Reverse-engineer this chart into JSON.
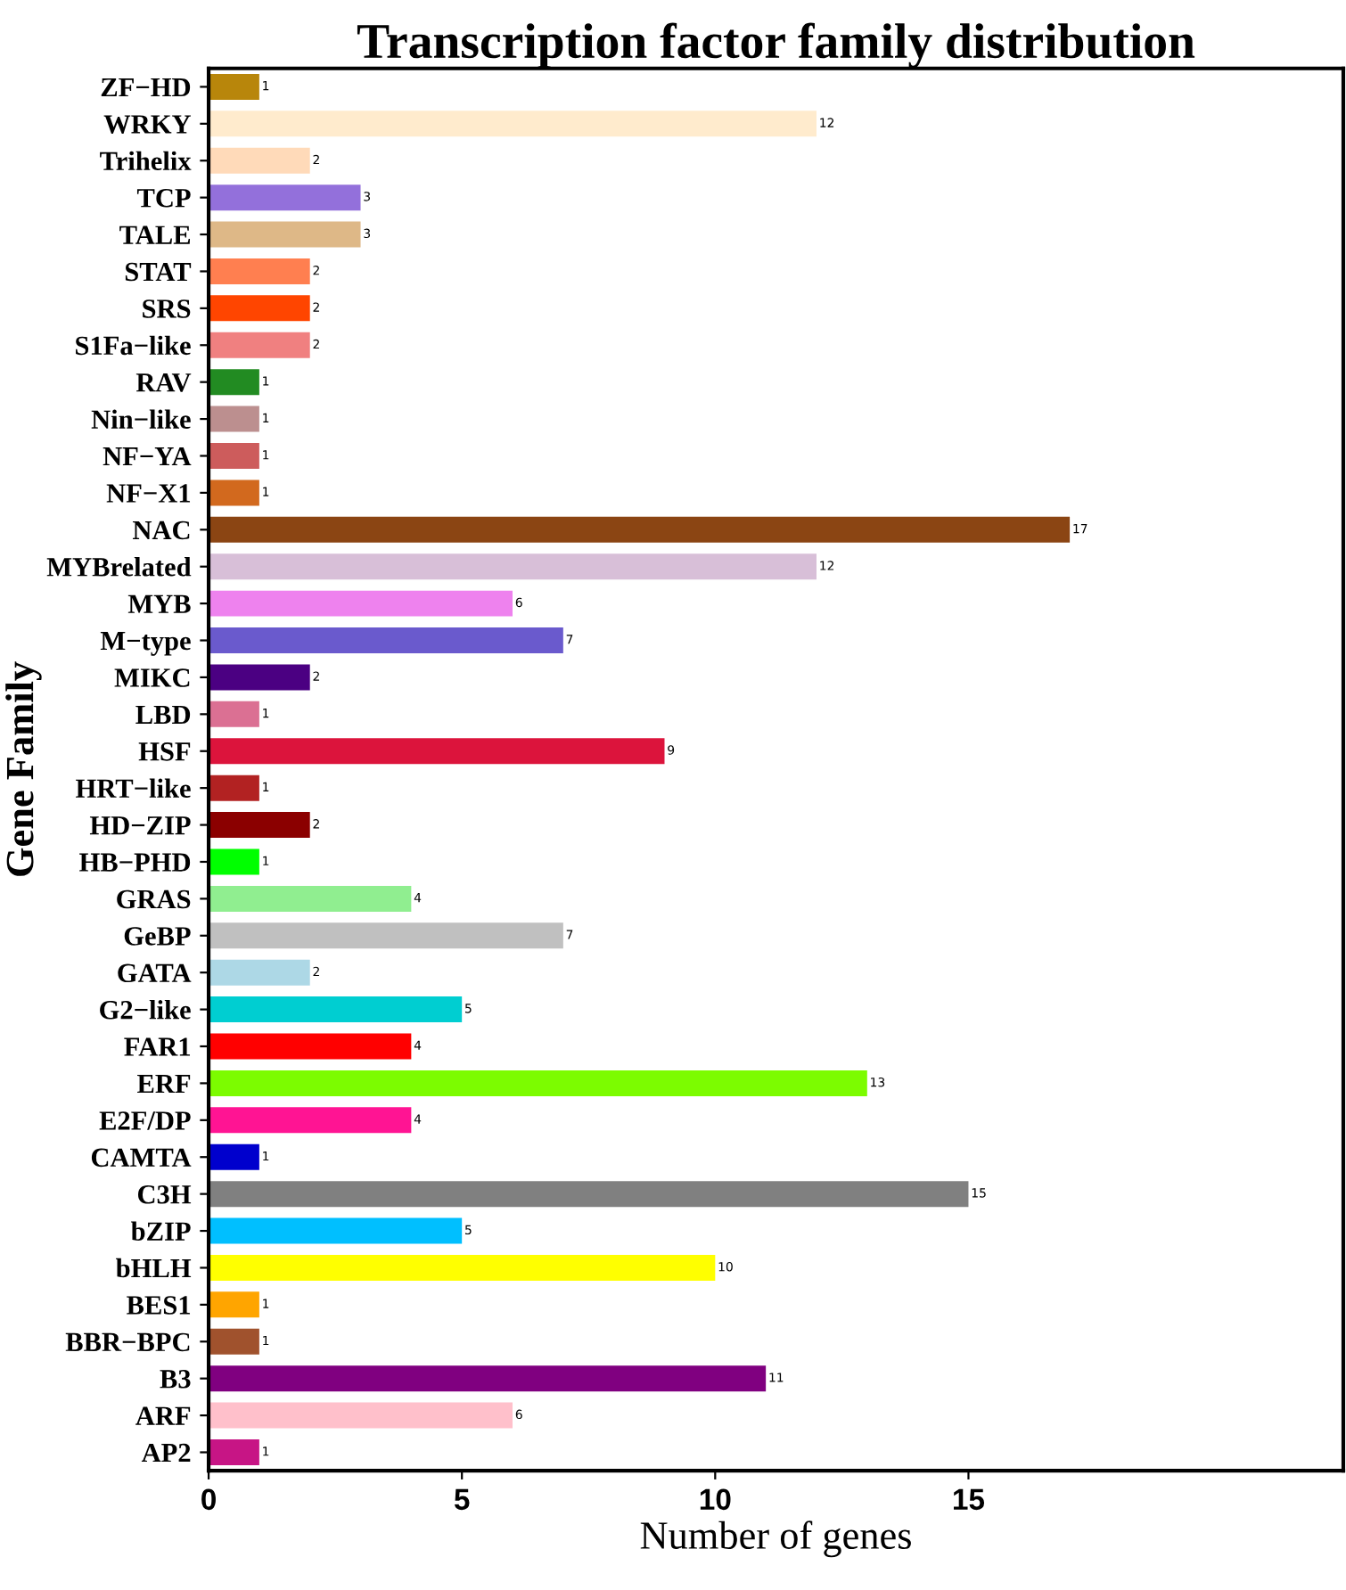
{
  "chart_data": {
    "type": "bar",
    "orientation": "horizontal",
    "title": "Transcription factor family distribution",
    "xlabel": "Number of genes",
    "ylabel": "Gene Family",
    "categories": [
      "ZF−HD",
      "WRKY",
      "Trihelix",
      "TCP",
      "TALE",
      "STAT",
      "SRS",
      "S1Fa−like",
      "RAV",
      "Nin−like",
      "NF−YA",
      "NF−X1",
      "NAC",
      "MYBrelated",
      "MYB",
      "M−type",
      "MIKC",
      "LBD",
      "HSF",
      "HRT−like",
      "HD−ZIP",
      "HB−PHD",
      "GRAS",
      "GeBP",
      "GATA",
      "G2−like",
      "FAR1",
      "ERF",
      "E2F/DP",
      "CAMTA",
      "C3H",
      "bZIP",
      "bHLH",
      "BES1",
      "BBR−BPC",
      "B3",
      "ARF",
      "AP2"
    ],
    "values": [
      1,
      12,
      2,
      3,
      3,
      2,
      2,
      2,
      1,
      1,
      1,
      1,
      17,
      12,
      6,
      7,
      2,
      1,
      9,
      1,
      2,
      1,
      4,
      7,
      2,
      5,
      4,
      13,
      4,
      1,
      15,
      5,
      10,
      1,
      1,
      11,
      6,
      1
    ],
    "colors": [
      "#b8860b",
      "#ffebcd",
      "#ffdab9",
      "#9370db",
      "#deb887",
      "#ff7f50",
      "#ff4500",
      "#f08080",
      "#228b22",
      "#bc8f8f",
      "#cd5c5c",
      "#d2691e",
      "#8b4513",
      "#d8bfd8",
      "#ee82ee",
      "#6a5acd",
      "#4b0082",
      "#db7093",
      "#dc143c",
      "#b22222",
      "#8b0000",
      "#00ff00",
      "#90ee90",
      "#c0c0c0",
      "#add8e6",
      "#00ced1",
      "#ff0000",
      "#7cfc00",
      "#ff1493",
      "#0000cd",
      "#808080",
      "#00bfff",
      "#ffff00",
      "#ffa500",
      "#a0522d",
      "#800080",
      "#ffc0cb",
      "#c71585"
    ],
    "xlim": [
      0,
      22.4
    ],
    "xticks": [
      0,
      5,
      10,
      15
    ],
    "data_labels": true,
    "grid": false,
    "legend": false
  }
}
